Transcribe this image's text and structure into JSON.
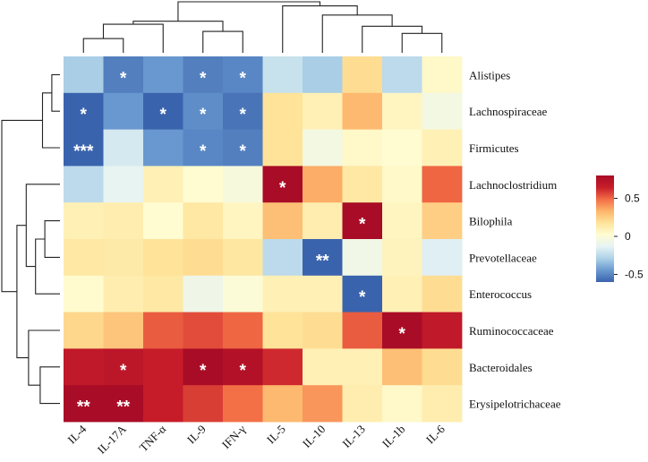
{
  "chart_data": {
    "type": "heatmap",
    "title": "",
    "columns": [
      "IL-4",
      "IL-17A",
      "TNF-α",
      "IL-9",
      "IFN-γ",
      "IL-5",
      "IL-10",
      "IL-13",
      "IL-1b",
      "IL-6"
    ],
    "rows": [
      "Alistipes",
      "Lachnospiraceae",
      "Firmicutes",
      "Lachnoclostridium",
      "Bilophila",
      "Prevotellaceae",
      "Enterococcus",
      "Ruminococcaceae",
      "Bacteroidales",
      "Erysipelotrichaceae"
    ],
    "values": [
      [
        -0.3,
        -0.52,
        -0.45,
        -0.52,
        -0.5,
        -0.22,
        -0.3,
        0.2,
        -0.25,
        0.05
      ],
      [
        -0.6,
        -0.45,
        -0.62,
        -0.48,
        -0.55,
        0.18,
        0.1,
        0.32,
        0.07,
        -0.05
      ],
      [
        -0.78,
        -0.18,
        -0.45,
        -0.5,
        -0.52,
        0.18,
        -0.05,
        0.05,
        0.02,
        0.1
      ],
      [
        -0.25,
        -0.12,
        0.1,
        0.02,
        -0.03,
        0.8,
        0.35,
        0.15,
        0.05,
        0.5
      ],
      [
        0.1,
        0.12,
        0.02,
        0.15,
        0.07,
        0.3,
        0.12,
        0.8,
        0.07,
        0.25
      ],
      [
        0.15,
        0.14,
        0.18,
        0.2,
        0.16,
        -0.25,
        -0.65,
        -0.07,
        0.08,
        -0.15
      ],
      [
        0.03,
        0.12,
        0.15,
        -0.08,
        0.0,
        0.1,
        0.1,
        -0.62,
        0.1,
        0.2
      ],
      [
        0.22,
        0.28,
        0.52,
        0.55,
        0.5,
        0.18,
        0.2,
        0.52,
        0.85,
        0.68
      ],
      [
        0.68,
        0.7,
        0.65,
        0.8,
        0.75,
        0.62,
        0.1,
        0.1,
        0.3,
        0.2
      ],
      [
        0.82,
        0.86,
        0.65,
        0.58,
        0.48,
        0.32,
        0.4,
        0.12,
        0.05,
        0.12
      ]
    ],
    "significance": [
      [
        "",
        "*",
        "",
        "*",
        "*",
        "",
        "",
        "",
        "",
        ""
      ],
      [
        "*",
        "",
        "*",
        "*",
        "*",
        "",
        "",
        "",
        "",
        ""
      ],
      [
        "***",
        "",
        "",
        "*",
        "*",
        "",
        "",
        "",
        "",
        ""
      ],
      [
        "",
        "",
        "",
        "",
        "",
        "*",
        "",
        "",
        "",
        ""
      ],
      [
        "",
        "",
        "",
        "",
        "",
        "",
        "",
        "*",
        "",
        ""
      ],
      [
        "",
        "",
        "",
        "",
        "",
        "",
        "**",
        "",
        "",
        ""
      ],
      [
        "",
        "",
        "",
        "",
        "",
        "",
        "",
        "*",
        "",
        ""
      ],
      [
        "",
        "",
        "",
        "",
        "",
        "",
        "",
        "",
        "*",
        ""
      ],
      [
        "",
        "*",
        "",
        "*",
        "*",
        "",
        "",
        "",
        "",
        ""
      ],
      [
        "**",
        "**",
        "",
        "",
        "",
        "",
        "",
        "",
        "",
        ""
      ]
    ],
    "value_range": [
      -0.6,
      0.8
    ],
    "colorbar": {
      "ticks": [
        0.5,
        0,
        -0.5
      ],
      "tick_labels": [
        "0.5",
        "0",
        "-0.5"
      ],
      "colors": [
        "#3a63ad",
        "#6a9ad0",
        "#aed2e8",
        "#e6f3f4",
        "#fffcd2",
        "#fee49a",
        "#fdb56b",
        "#f26c45",
        "#c71d2a",
        "#a90c26"
      ]
    },
    "column_dendrogram": {
      "merges": [
        [
          0,
          1
        ],
        [
          3,
          4
        ],
        [
          2,
          10
        ],
        [
          11,
          12
        ],
        [
          8,
          9
        ],
        [
          7,
          14
        ],
        [
          6,
          15
        ],
        [
          5,
          16
        ],
        [
          13,
          17
        ]
      ]
    },
    "row_dendrogram": {
      "merges": [
        [
          0,
          1
        ],
        [
          2,
          10
        ],
        [
          4,
          5
        ],
        [
          6,
          12
        ],
        [
          3,
          13
        ],
        [
          8,
          9
        ],
        [
          7,
          15
        ],
        [
          14,
          16
        ],
        [
          11,
          17
        ]
      ]
    }
  }
}
